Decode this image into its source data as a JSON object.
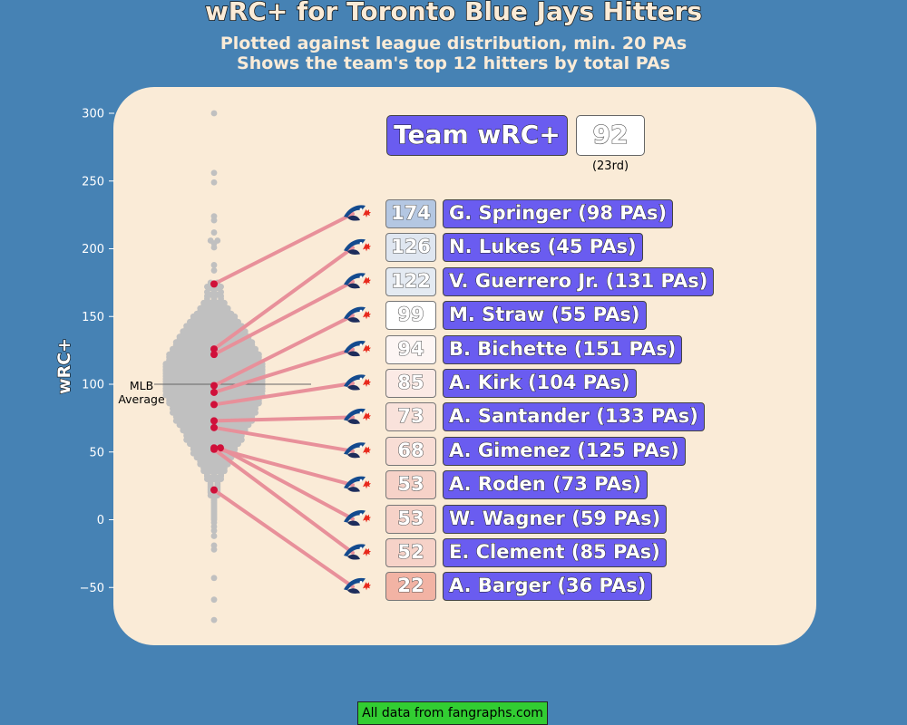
{
  "title": "wRC+ for Toronto Blue Jays Hitters",
  "subtitle_line1": "Plotted against league distribution, min. 20 PAs",
  "subtitle_line2": "Shows the team's top 12 hitters by total PAs",
  "footer": "All data from fangraphs.com",
  "team": {
    "label": "Team wRC+",
    "value": "92",
    "rank": "(23rd)"
  },
  "colors": {
    "background": "#4682b4",
    "panel": "#faebd7",
    "league_dot": "#c0c0c0",
    "player_dot": "#d0103a",
    "connector": "#e8909a",
    "name_box": "#6a5cf0",
    "footer": "#32cd32"
  },
  "chart_data": {
    "type": "scatter",
    "subtype": "beeswarm",
    "ylabel": "wRC+",
    "ylim": [
      -80,
      305
    ],
    "yticks": [
      300,
      250,
      200,
      150,
      100,
      50,
      0,
      -50
    ],
    "reference_line": {
      "value": 100,
      "label_line1": "MLB",
      "label_line2": "Average"
    },
    "league_values": [
      300,
      256,
      249,
      224,
      221,
      212,
      206,
      204,
      201,
      188,
      184,
      175,
      174,
      173,
      172,
      171,
      168,
      166,
      165,
      163,
      161,
      160,
      159,
      158,
      157,
      156,
      155,
      154,
      153,
      152,
      151,
      150,
      149,
      148,
      147,
      146,
      145,
      144,
      143,
      142,
      141,
      140,
      139,
      138,
      137,
      136,
      135,
      134,
      133,
      132,
      131,
      130,
      129,
      128,
      127,
      126,
      125,
      124,
      123,
      122,
      121,
      120,
      119,
      118,
      117,
      116,
      115,
      114,
      113,
      112,
      111,
      110,
      109,
      108,
      107,
      106,
      105,
      104,
      103,
      102,
      101,
      100,
      99,
      98,
      97,
      96,
      95,
      94,
      93,
      92,
      91,
      90,
      89,
      88,
      87,
      86,
      85,
      84,
      83,
      82,
      81,
      80,
      79,
      78,
      77,
      76,
      75,
      74,
      73,
      72,
      71,
      70,
      69,
      68,
      67,
      66,
      65,
      64,
      63,
      62,
      61,
      60,
      59,
      58,
      57,
      56,
      55,
      54,
      53,
      52,
      51,
      50,
      49,
      48,
      47,
      46,
      45,
      44,
      43,
      42,
      41,
      40,
      39,
      38,
      37,
      36,
      35,
      34,
      33,
      32,
      31,
      30,
      29,
      28,
      27,
      26,
      25,
      24,
      23,
      22,
      21,
      20,
      19,
      18,
      17,
      16,
      15,
      14,
      13,
      12,
      11,
      10,
      9,
      8,
      7,
      6,
      5,
      4,
      3,
      2,
      1,
      0,
      -2,
      -5,
      -8,
      -12,
      -19,
      -22,
      -43,
      -59,
      -74
    ],
    "league_counts": [
      1,
      1,
      1,
      1,
      1,
      1,
      2,
      1,
      1,
      1,
      1,
      2,
      2,
      2,
      3,
      2,
      3,
      2,
      3,
      3,
      3,
      4,
      3,
      4,
      4,
      5,
      4,
      5,
      5,
      6,
      6,
      7,
      6,
      7,
      7,
      8,
      7,
      8,
      9,
      8,
      9,
      9,
      10,
      9,
      10,
      10,
      11,
      10,
      11,
      11,
      12,
      11,
      12,
      12,
      12,
      13,
      12,
      13,
      13,
      14,
      13,
      14,
      13,
      14,
      14,
      14,
      15,
      14,
      15,
      14,
      15,
      15,
      14,
      15,
      14,
      15,
      14,
      15,
      14,
      15,
      14,
      15,
      15,
      14,
      15,
      14,
      15,
      14,
      14,
      15,
      14,
      14,
      13,
      14,
      13,
      14,
      13,
      13,
      12,
      13,
      12,
      12,
      13,
      12,
      11,
      12,
      11,
      11,
      12,
      11,
      10,
      11,
      10,
      10,
      9,
      10,
      9,
      9,
      8,
      9,
      8,
      8,
      9,
      8,
      7,
      8,
      7,
      7,
      6,
      7,
      6,
      6,
      7,
      6,
      5,
      6,
      5,
      5,
      5,
      4,
      5,
      4,
      4,
      4,
      3,
      4,
      3,
      3,
      3,
      3,
      2,
      3,
      2,
      2,
      2,
      2,
      2,
      2,
      2,
      2,
      2,
      2,
      1,
      2,
      1,
      1,
      1,
      1,
      1,
      1,
      1,
      1,
      1,
      1,
      1,
      1,
      1,
      1,
      1,
      1,
      1,
      1,
      1,
      1,
      1
    ],
    "players": [
      {
        "name": "G. Springer (98 PAs)",
        "wrc_plus": 174,
        "value_label": "174",
        "box_color": "#b4c7e2"
      },
      {
        "name": "N. Lukes (45 PAs)",
        "wrc_plus": 126,
        "value_label": "126",
        "box_color": "#dfe6f0"
      },
      {
        "name": "V. Guerrero Jr. (131 PAs)",
        "wrc_plus": 122,
        "value_label": "122",
        "box_color": "#e4eaf2"
      },
      {
        "name": "M. Straw (55 PAs)",
        "wrc_plus": 99,
        "value_label": "99",
        "box_color": "#ffffff"
      },
      {
        "name": "B. Bichette (151 PAs)",
        "wrc_plus": 94,
        "value_label": "94",
        "box_color": "#fdf6f4"
      },
      {
        "name": "A. Kirk (104 PAs)",
        "wrc_plus": 85,
        "value_label": "85",
        "box_color": "#fbeae5"
      },
      {
        "name": "A. Santander (133 PAs)",
        "wrc_plus": 73,
        "value_label": "73",
        "box_color": "#f9e2db"
      },
      {
        "name": "A. Gimenez (125 PAs)",
        "wrc_plus": 68,
        "value_label": "68",
        "box_color": "#f8ddd5"
      },
      {
        "name": "A. Roden (73 PAs)",
        "wrc_plus": 53,
        "value_label": "53",
        "box_color": "#f6d2c8"
      },
      {
        "name": "W. Wagner (59 PAs)",
        "wrc_plus": 53,
        "value_label": "53",
        "box_color": "#f6d2c8"
      },
      {
        "name": "E. Clement (85 PAs)",
        "wrc_plus": 52,
        "value_label": "52",
        "box_color": "#f6d2c8"
      },
      {
        "name": "A. Barger (36 PAs)",
        "wrc_plus": 22,
        "value_label": "22",
        "box_color": "#f2b3a4"
      }
    ]
  }
}
